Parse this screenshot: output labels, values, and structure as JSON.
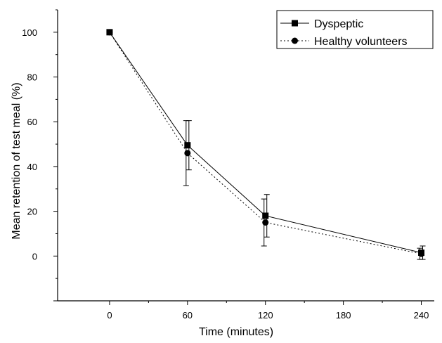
{
  "chart_data": {
    "type": "line",
    "xlabel": "Time (minutes)",
    "ylabel": "Mean retention of test meal (%)",
    "x_ticks": [
      0,
      60,
      120,
      180,
      240
    ],
    "y_ticks": [
      0,
      20,
      40,
      60,
      80,
      100
    ],
    "xlim": [
      -40,
      250
    ],
    "ylim": [
      -20,
      110
    ],
    "grid": false,
    "legend_position": "top-right",
    "series": [
      {
        "name": "Dyspeptic",
        "marker": "square",
        "line_style": "solid",
        "x": [
          0,
          60,
          120,
          240
        ],
        "y": [
          100,
          49.5,
          18,
          1.5
        ],
        "error": [
          0,
          11,
          9.5,
          3
        ]
      },
      {
        "name": "Healthy volunteers",
        "marker": "circle",
        "line_style": "dotted",
        "x": [
          0,
          60,
          120,
          240
        ],
        "y": [
          100,
          46,
          15,
          1
        ],
        "error": [
          0,
          14.5,
          10.5,
          2.5
        ]
      }
    ]
  }
}
